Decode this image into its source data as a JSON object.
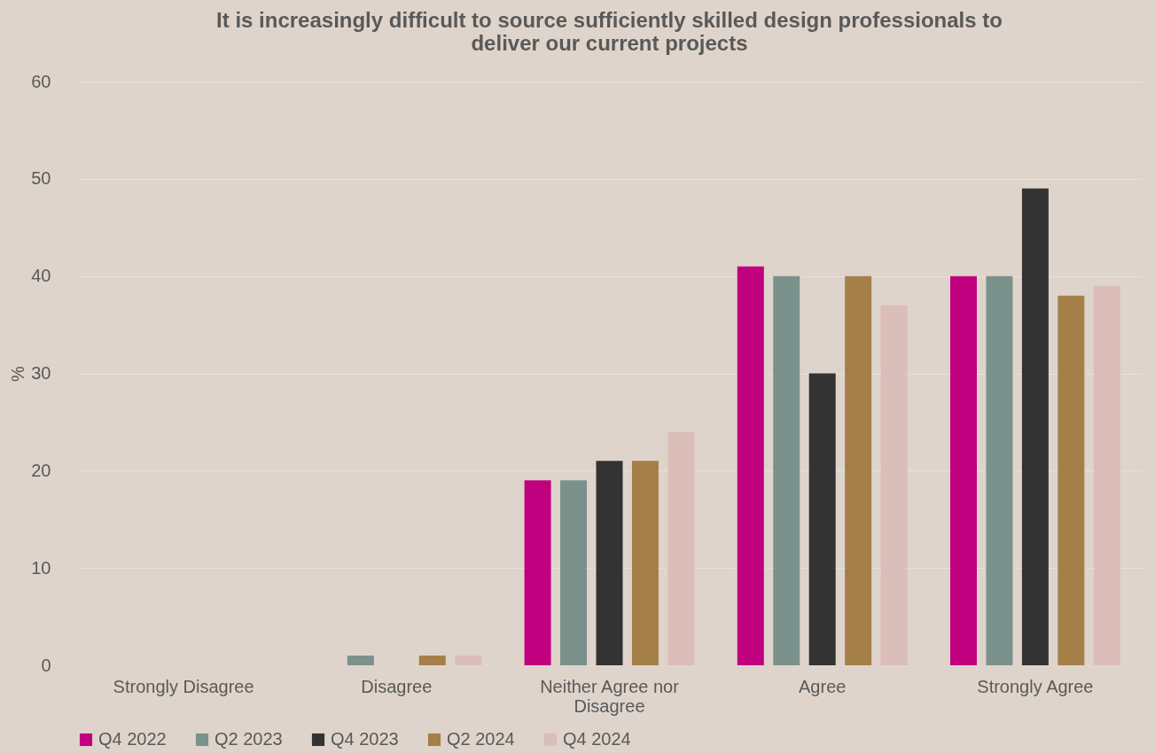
{
  "chart_data": {
    "type": "bar",
    "title": "It is increasingly difficult to source sufficiently skilled design professionals to deliver our current projects",
    "ylabel": "%",
    "categories": [
      "Strongly Disagree",
      "Disagree",
      "Neither Agree nor Disagree",
      "Agree",
      "Strongly Agree"
    ],
    "series": [
      {
        "name": "Q4 2022",
        "color": "#c0007f",
        "values": [
          0,
          0,
          19,
          41,
          40
        ]
      },
      {
        "name": "Q2 2023",
        "color": "#7a918c",
        "values": [
          0,
          1,
          19,
          40,
          40
        ]
      },
      {
        "name": "Q4 2023",
        "color": "#333333",
        "values": [
          0,
          0,
          21,
          30,
          49
        ]
      },
      {
        "name": "Q2 2024",
        "color": "#a47f47",
        "values": [
          0,
          1,
          21,
          40,
          38
        ]
      },
      {
        "name": "Q4 2024",
        "color": "#dbbdb9",
        "values": [
          0,
          1,
          24,
          37,
          39
        ]
      }
    ],
    "ylim": [
      0,
      60
    ],
    "yticks": [
      0,
      10,
      20,
      30,
      40,
      50,
      60
    ],
    "grid": "y",
    "legend": "bottom"
  }
}
